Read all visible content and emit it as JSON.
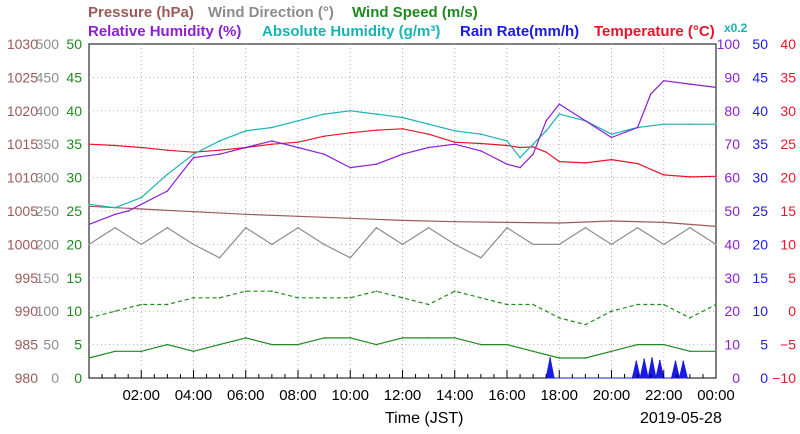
{
  "chart_data": {
    "type": "line",
    "legend": [
      {
        "label": "Pressure (hPa)",
        "color": "#9c5a5a"
      },
      {
        "label": "Wind Direction (°)",
        "color": "#8c8c8c"
      },
      {
        "label": "Wind Speed (m/s)",
        "color": "#1f8a1f"
      },
      {
        "label": "Relative Humidity (%)",
        "color": "#8b1fd6"
      },
      {
        "label": "Absolute Humidity (g/m³)",
        "color": "#17b3b3"
      },
      {
        "label": "Rain Rate(mm/h)",
        "color": "#1a1ae6"
      },
      {
        "label": "Temperature (°C)",
        "color": "#e8152b"
      }
    ],
    "abs_humidity_scale": "x0.2",
    "xlabel": "Time (JST)",
    "date": "2019-05-28",
    "x_ticks": [
      "02:00",
      "04:00",
      "06:00",
      "08:00",
      "10:00",
      "12:00",
      "14:00",
      "16:00",
      "18:00",
      "20:00",
      "22:00",
      "00:00"
    ],
    "xlim": [
      0,
      24
    ],
    "axes": {
      "pressure": {
        "color": "#9c5a5a",
        "ticks": [
          "980",
          "985",
          "990",
          "995",
          "1000",
          "1005",
          "1010",
          "1015",
          "1020",
          "1025",
          "1030"
        ],
        "range": [
          980,
          1030
        ]
      },
      "wind_direction": {
        "color": "#8c8c8c",
        "ticks": [
          "0",
          "50",
          "100",
          "150",
          "200",
          "250",
          "300",
          "350",
          "400",
          "450",
          "500"
        ],
        "range": [
          0,
          500
        ]
      },
      "wind_speed": {
        "color": "#1f8a1f",
        "ticks": [
          "0",
          "5",
          "10",
          "15",
          "20",
          "25",
          "30",
          "35",
          "40",
          "45",
          "50"
        ],
        "range": [
          0,
          50
        ]
      },
      "relative_humidity": {
        "color": "#8b1fd6",
        "ticks": [
          "0",
          "10",
          "20",
          "30",
          "40",
          "50",
          "60",
          "70",
          "80",
          "90",
          "100"
        ],
        "range": [
          0,
          100
        ]
      },
      "rain_rate": {
        "color": "#1a1ae6",
        "ticks": [
          "0",
          "5",
          "10",
          "15",
          "20",
          "25",
          "30",
          "35",
          "40",
          "45",
          "50"
        ],
        "range": [
          0,
          50
        ]
      },
      "temperature": {
        "color": "#e8152b",
        "ticks": [
          "−10",
          "−5",
          "0",
          "5",
          "10",
          "15",
          "20",
          "25",
          "30",
          "35",
          "40"
        ],
        "range": [
          -10,
          40
        ]
      }
    },
    "series": [
      {
        "name": "Temperature (°C)",
        "axis": "temperature",
        "color": "#e8152b",
        "style": "solid",
        "x": [
          0,
          1,
          2,
          3,
          4,
          5,
          6,
          7,
          8,
          9,
          10,
          11,
          12,
          13,
          14,
          15,
          16,
          16.5,
          17,
          17.5,
          18,
          19,
          20,
          21,
          22,
          23,
          24
        ],
        "y": [
          25,
          24.8,
          24.5,
          24.1,
          23.8,
          24.1,
          24.5,
          25,
          25.3,
          26.2,
          26.7,
          27.1,
          27.3,
          26.5,
          25.3,
          25.1,
          24.8,
          24.5,
          24.6,
          23.8,
          22.4,
          22.2,
          22.7,
          22.1,
          20.4,
          20.1,
          20.2
        ]
      },
      {
        "name": "Relative Humidity (%)",
        "axis": "relative_humidity",
        "color": "#8b1fd6",
        "style": "solid",
        "x": [
          0,
          1,
          1.5,
          2,
          3,
          3.5,
          4,
          5,
          6,
          7,
          8,
          9,
          10,
          11,
          12,
          13,
          14,
          15,
          16,
          16.5,
          17,
          17.5,
          18,
          19,
          20,
          21,
          21.5,
          22,
          23,
          24
        ],
        "y": [
          46,
          49,
          50,
          52,
          56,
          61,
          66,
          67,
          69,
          71,
          69,
          67,
          63,
          64,
          67,
          69,
          70,
          68,
          64,
          63,
          67,
          77,
          82,
          77,
          72,
          75,
          85,
          89,
          88,
          87
        ]
      },
      {
        "name": "Absolute Humidity (g/m³)",
        "axis": "relative_humidity",
        "color": "#17b3b3",
        "style": "solid",
        "x": [
          0,
          1,
          2,
          3,
          4,
          5,
          6,
          7,
          8,
          9,
          10,
          11,
          12,
          13,
          14,
          15,
          16,
          16.5,
          17,
          17.5,
          18,
          19,
          20,
          21,
          22,
          23,
          24
        ],
        "y": [
          52,
          51,
          54,
          61,
          67,
          71,
          74,
          75,
          77,
          79,
          80,
          79,
          78,
          76,
          74,
          73,
          71,
          66,
          70,
          74,
          79,
          77,
          73,
          75,
          76,
          76,
          76
        ]
      },
      {
        "name": "Pressure (hPa)",
        "axis": "pressure",
        "color": "#9c5a5a",
        "style": "solid",
        "x": [
          0,
          2,
          4,
          6,
          8,
          10,
          12,
          14,
          16,
          18,
          20,
          22,
          24
        ],
        "y": [
          1005.7,
          1005.3,
          1004.9,
          1004.5,
          1004.2,
          1003.9,
          1003.6,
          1003.4,
          1003.3,
          1003.2,
          1003.5,
          1003.3,
          1002.7
        ]
      },
      {
        "name": "Wind Direction (°)",
        "axis": "wind_direction",
        "color": "#8c8c8c",
        "style": "solid",
        "x": [
          0,
          1,
          2,
          3,
          4,
          5,
          6,
          7,
          8,
          9,
          10,
          11,
          12,
          13,
          14,
          15,
          16,
          17,
          18,
          19,
          20,
          21,
          22,
          23,
          24
        ],
        "y": [
          200,
          225,
          200,
          225,
          200,
          180,
          225,
          200,
          225,
          200,
          180,
          225,
          200,
          225,
          200,
          180,
          225,
          200,
          200,
          225,
          200,
          225,
          200,
          225,
          200
        ]
      },
      {
        "name": "Wind Speed (m/s) gust",
        "axis": "wind_speed",
        "color": "#1f8a1f",
        "style": "dashed",
        "x": [
          0,
          1,
          2,
          3,
          4,
          5,
          6,
          7,
          8,
          9,
          10,
          11,
          12,
          13,
          14,
          15,
          16,
          17,
          18,
          19,
          20,
          21,
          22,
          23,
          24
        ],
        "y": [
          9,
          10,
          11,
          11,
          12,
          12,
          13,
          13,
          12,
          12,
          12,
          13,
          12,
          11,
          13,
          12,
          11,
          11,
          9,
          8,
          10,
          11,
          11,
          9,
          11
        ]
      },
      {
        "name": "Wind Speed (m/s)",
        "axis": "wind_speed",
        "color": "#1f8a1f",
        "style": "solid",
        "x": [
          0,
          1,
          2,
          3,
          4,
          5,
          6,
          7,
          8,
          9,
          10,
          11,
          12,
          13,
          14,
          15,
          16,
          17,
          18,
          19,
          20,
          21,
          22,
          23,
          24
        ],
        "y": [
          3,
          4,
          4,
          5,
          4,
          5,
          6,
          5,
          5,
          6,
          6,
          5,
          6,
          6,
          6,
          5,
          5,
          4,
          3,
          3,
          4,
          5,
          5,
          4,
          4
        ]
      },
      {
        "name": "Rain Rate(mm/h)",
        "axis": "rain_rate",
        "color": "#1a1ae6",
        "style": "fill",
        "x": [
          17.5,
          17.65,
          17.8,
          20.8,
          20.95,
          21.1,
          21.25,
          21.4,
          21.55,
          21.7,
          21.85,
          22.0,
          22.3,
          22.45,
          22.6,
          22.75,
          22.9
        ],
        "y": [
          0,
          3,
          0,
          0,
          2.5,
          0,
          2.8,
          0,
          3,
          0,
          2.6,
          0,
          0,
          2.5,
          0,
          2.5,
          0
        ]
      }
    ]
  }
}
